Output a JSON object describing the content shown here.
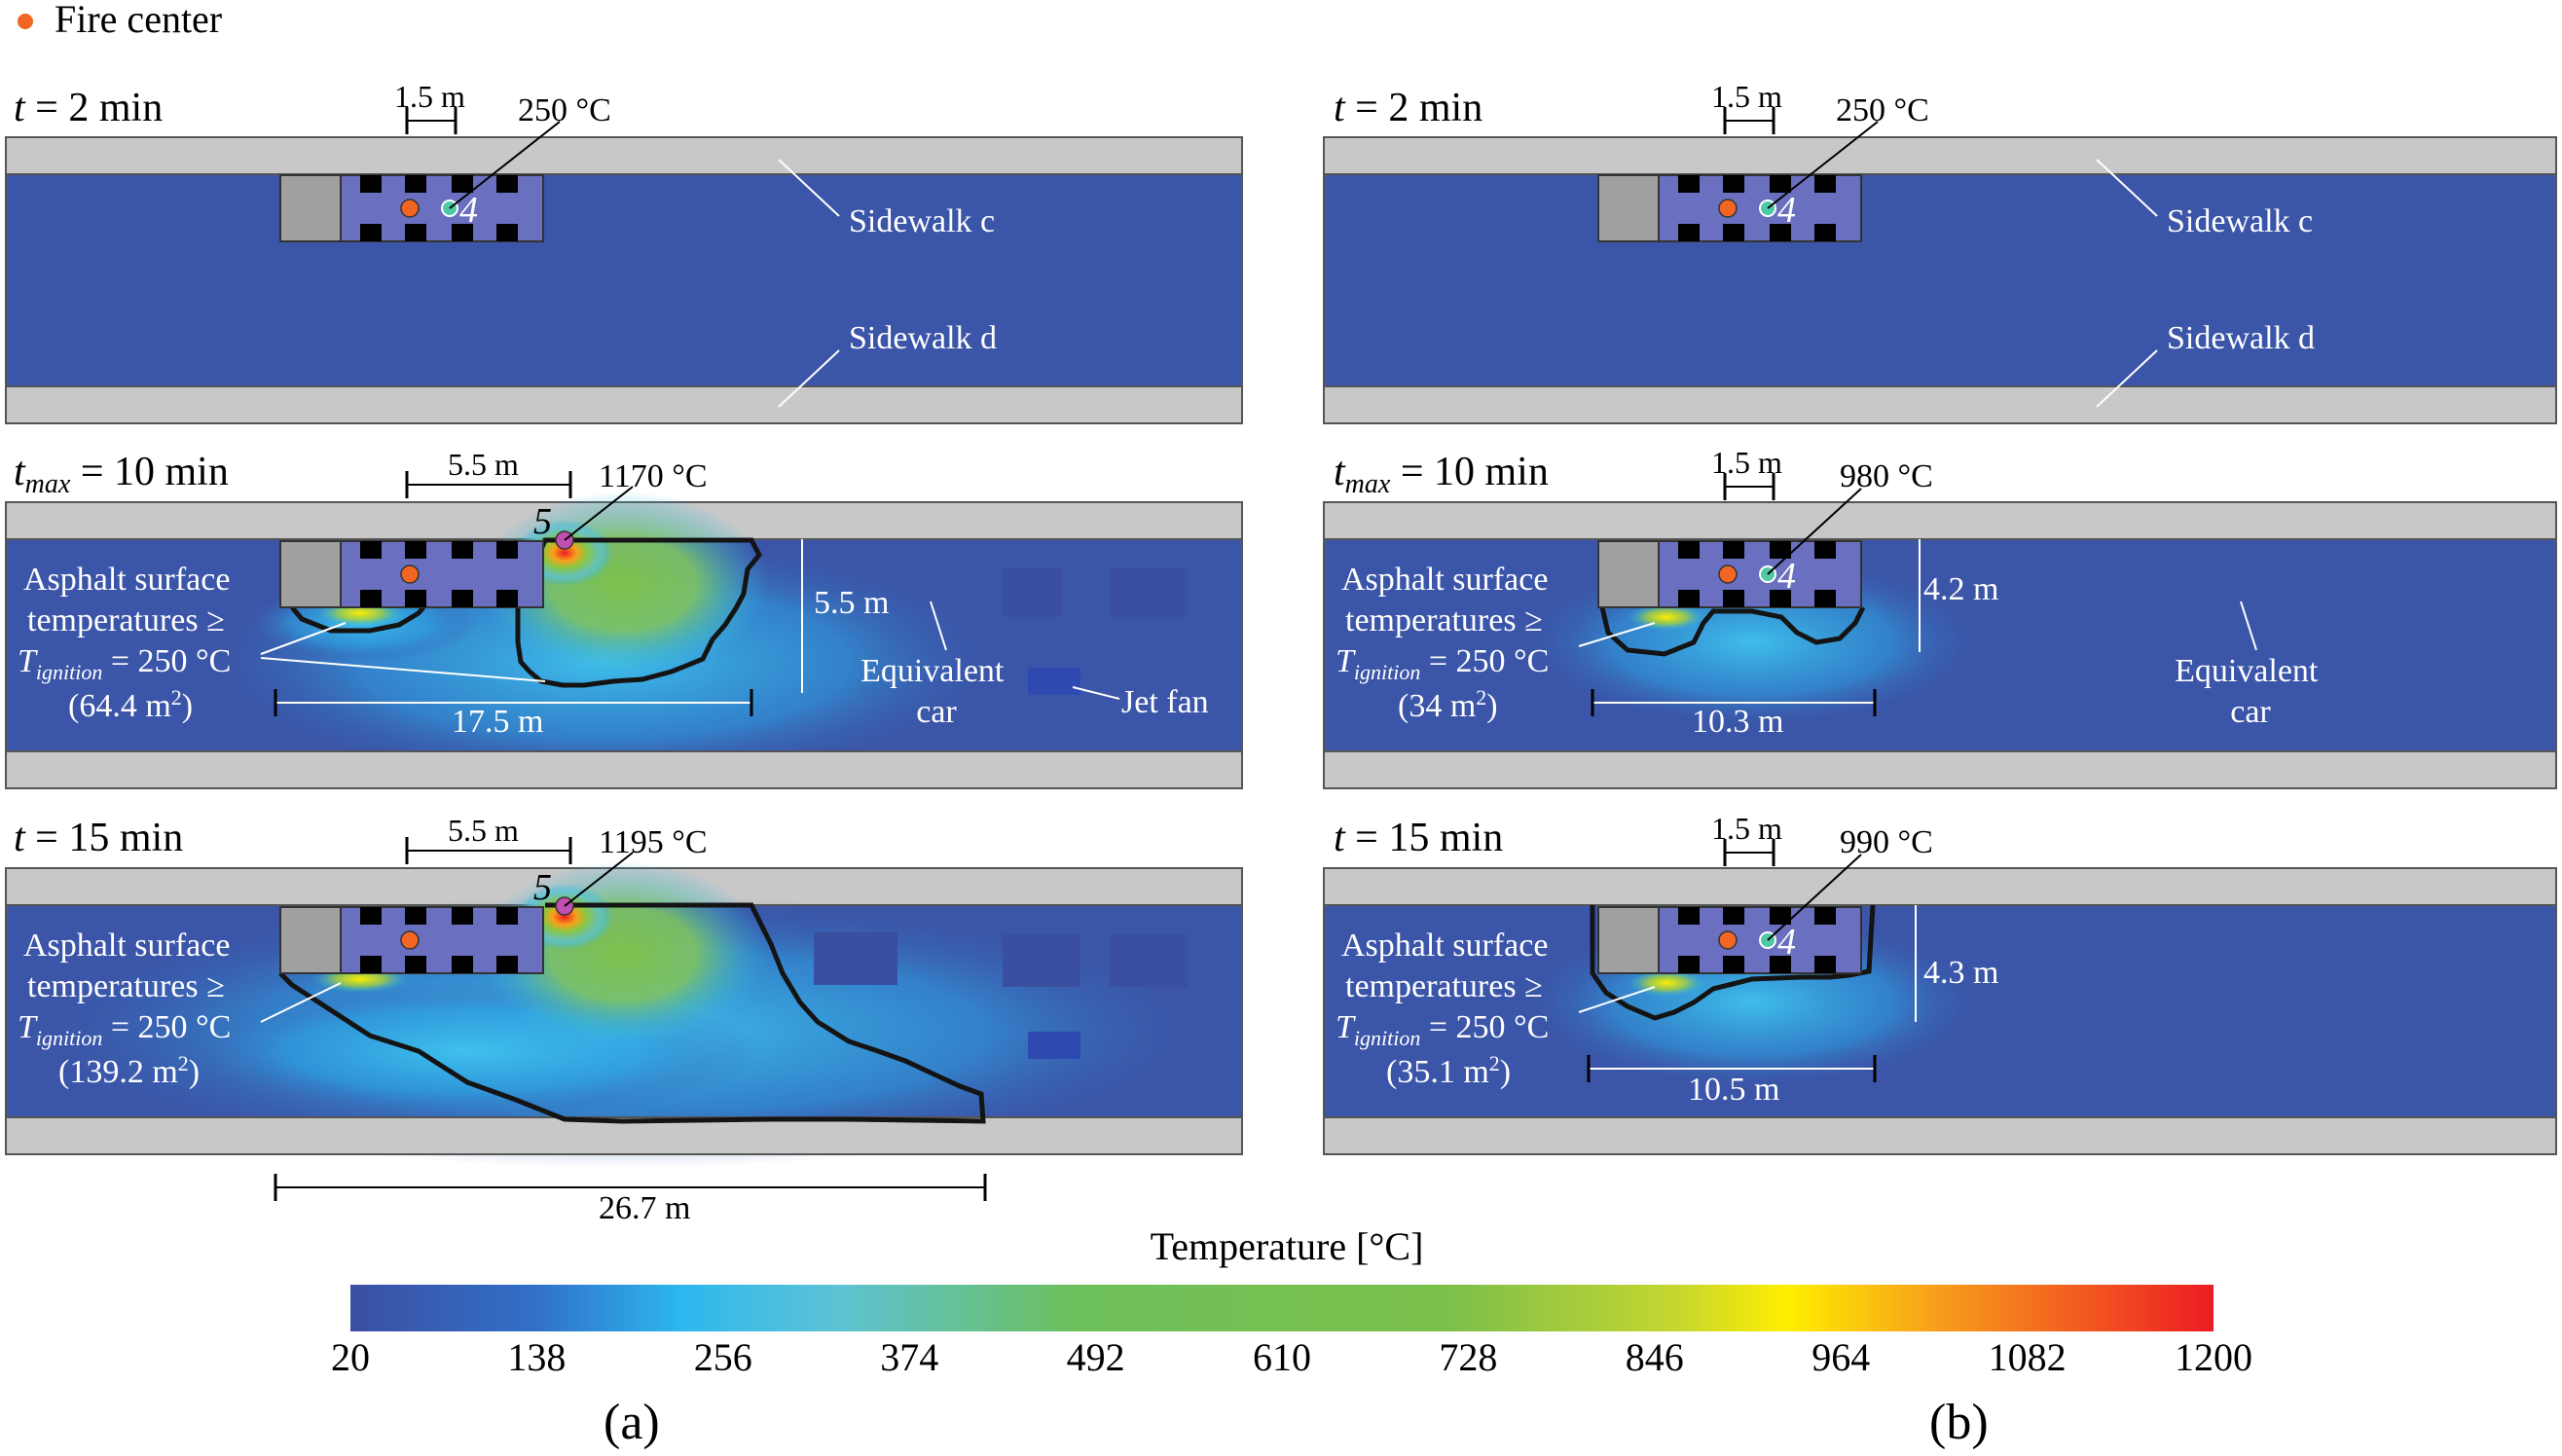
{
  "legend": {
    "label": "Fire center",
    "color": "#f26522"
  },
  "colors": {
    "road": "#3b55a8",
    "sidewalk": "#c8c8c8",
    "car_body": "#6a6fbf",
    "car_front": "#a0a0a0",
    "window": "#000000",
    "contour": "#141414",
    "sensor_4": "#4dc9a6",
    "sensor_5": "#c050b0",
    "annotation_white": "#ffffff"
  },
  "panels": {
    "a": {
      "caption": "(a)",
      "rows": [
        {
          "time_var": "t",
          "time_sub": "",
          "time_value": " = 2 min",
          "top_dim": "1.5 m",
          "peak_temp": "250 °C",
          "sensor_id": "4",
          "sidewalk_c": "Sidewalk c",
          "sidewalk_d": "Sidewalk d"
        },
        {
          "time_var": "t",
          "time_sub": "max",
          "time_value": " = 10 min",
          "top_dim": "5.5 m",
          "peak_temp": "1170 °C",
          "sensor_id": "5",
          "asphalt_line1": "Asphalt surface",
          "asphalt_line2": "temperatures ≥",
          "t_ign_var": "T",
          "t_ign_sub": "ignition",
          "t_ign_value": " = 250 °C",
          "area_prefix": "(64.4 m",
          "area_sup": "2",
          "area_suffix": ")",
          "length_dim": "17.5 m",
          "width_dim": "5.5 m",
          "equiv_line1": "Equivalent",
          "equiv_line2": "car",
          "jet_fan": "Jet fan"
        },
        {
          "time_var": "t",
          "time_sub": "",
          "time_value": " = 15 min",
          "top_dim": "5.5 m",
          "peak_temp": "1195 °C",
          "sensor_id": "5",
          "asphalt_line1": "Asphalt surface",
          "asphalt_line2": "temperatures ≥",
          "t_ign_var": "T",
          "t_ign_sub": "ignition",
          "t_ign_value": " = 250 °C",
          "area_prefix": "(139.2 m",
          "area_sup": "2",
          "area_suffix": ")",
          "bottom_dim": "26.7 m"
        }
      ]
    },
    "b": {
      "caption": "(b)",
      "rows": [
        {
          "time_var": "t",
          "time_sub": "",
          "time_value": " = 2 min",
          "top_dim": "1.5 m",
          "peak_temp": "250 °C",
          "sensor_id": "4",
          "sidewalk_c": "Sidewalk c",
          "sidewalk_d": "Sidewalk d"
        },
        {
          "time_var": "t",
          "time_sub": "max",
          "time_value": " = 10 min",
          "top_dim": "1.5 m",
          "peak_temp": "980 °C",
          "sensor_id": "4",
          "asphalt_line1": "Asphalt surface",
          "asphalt_line2": "temperatures ≥",
          "t_ign_var": "T",
          "t_ign_sub": "ignition",
          "t_ign_value": " = 250 °C",
          "area_prefix": "(34 m",
          "area_sup": "2",
          "area_suffix": ")",
          "length_dim": "10.3 m",
          "width_dim": "4.2 m",
          "equiv_line1": "Equivalent",
          "equiv_line2": "car"
        },
        {
          "time_var": "t",
          "time_sub": "",
          "time_value": " = 15 min",
          "top_dim": "1.5 m",
          "peak_temp": "990 °C",
          "sensor_id": "4",
          "asphalt_line1": "Asphalt surface",
          "asphalt_line2": "temperatures ≥",
          "t_ign_var": "T",
          "t_ign_sub": "ignition",
          "t_ign_value": " = 250 °C",
          "area_prefix": "(35.1 m",
          "area_sup": "2",
          "area_suffix": ")",
          "length_dim": "10.5 m",
          "width_dim": "4.3 m"
        }
      ]
    }
  },
  "colorbar": {
    "title": "Temperature [°C]",
    "ticks": [
      "20",
      "138",
      "256",
      "374",
      "492",
      "610",
      "728",
      "846",
      "964",
      "1082",
      "1200"
    ],
    "range": [
      20,
      1200
    ],
    "stops": [
      {
        "value": 20,
        "color": "#3b4fa3"
      },
      {
        "value": 138,
        "color": "#3270c8"
      },
      {
        "value": 230,
        "color": "#2cb8ee"
      },
      {
        "value": 330,
        "color": "#5ec3d4"
      },
      {
        "value": 480,
        "color": "#6cbf5a"
      },
      {
        "value": 720,
        "color": "#7dc04b"
      },
      {
        "value": 860,
        "color": "#c6d62f"
      },
      {
        "value": 930,
        "color": "#ffee00"
      },
      {
        "value": 1020,
        "color": "#f7a21b"
      },
      {
        "value": 1200,
        "color": "#ed1c24"
      }
    ]
  }
}
